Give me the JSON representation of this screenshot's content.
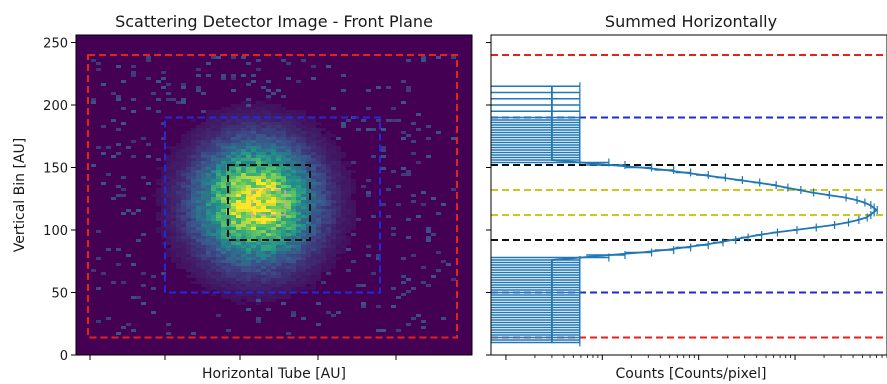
{
  "chart_data": [
    {
      "type": "heatmap",
      "title": "Scattering Detector Image - Front Plane",
      "xlabel": "Horizontal Tube [AU]",
      "ylabel": "Vertical Bin [AU]",
      "ylim": [
        0,
        256
      ],
      "yticks": [
        0,
        50,
        100,
        150,
        200,
        250
      ],
      "xticks_labeled": false,
      "colormap": "viridis",
      "distribution": {
        "center_y": 122,
        "sigma_y": 28,
        "support_y": [
          15,
          240
        ]
      },
      "regions": [
        {
          "color": "#e8201b",
          "y_range": [
            14,
            240
          ]
        },
        {
          "color": "#1f2ad8",
          "y_range": [
            50,
            190
          ]
        },
        {
          "color": "#111111",
          "y_range": [
            92,
            152
          ]
        },
        {
          "color": "#c9a9a0",
          "y_range": [
            112,
            132
          ]
        }
      ]
    },
    {
      "type": "line",
      "title": "Summed Horizontally",
      "xlabel": "Counts [Counts/pixel]",
      "x_scale": "log",
      "xticks_labeled": false,
      "ylim": [
        0,
        256
      ],
      "series": [
        {
          "color": "#1f77b4",
          "x": [
            3,
            3,
            3,
            3,
            3,
            3,
            3,
            3,
            3,
            3,
            3,
            3,
            3,
            3,
            3,
            3,
            3,
            3,
            3,
            3,
            3,
            3,
            3,
            3,
            3,
            3,
            3,
            3,
            3,
            3,
            3,
            3,
            3,
            3,
            6,
            12,
            25,
            45,
            70,
            110,
            160,
            220,
            300,
            420,
            620,
            1000,
            1600,
            2500,
            3500,
            4500,
            5500,
            6000,
            6500,
            7000,
            6500,
            6000,
            5200,
            4300,
            3300,
            2200,
            1500,
            1100,
            800,
            600,
            400,
            260,
            170,
            110,
            70,
            45,
            25,
            12,
            6,
            3,
            3,
            3,
            3,
            3,
            3,
            3,
            3,
            3,
            3,
            3,
            3,
            3,
            3,
            3,
            3,
            3,
            3,
            3,
            3,
            3,
            3,
            3
          ],
          "y": [
            10,
            12,
            14,
            16,
            18,
            20,
            22,
            24,
            26,
            28,
            30,
            32,
            34,
            36,
            38,
            40,
            42,
            44,
            46,
            48,
            50,
            52,
            54,
            56,
            58,
            60,
            62,
            64,
            66,
            68,
            70,
            72,
            74,
            76,
            78,
            80,
            82,
            84,
            86,
            88,
            90,
            92,
            94,
            96,
            98,
            100,
            102,
            104,
            106,
            108,
            110,
            112,
            114,
            116,
            118,
            120,
            122,
            124,
            126,
            128,
            130,
            132,
            134,
            136,
            138,
            140,
            142,
            144,
            146,
            148,
            150,
            152,
            154,
            156,
            158,
            160,
            162,
            164,
            166,
            168,
            170,
            172,
            174,
            176,
            178,
            180,
            182,
            184,
            186,
            188,
            190,
            195,
            200,
            205,
            210,
            215
          ]
        }
      ],
      "hlines": [
        {
          "color": "#e8201b",
          "y": 14
        },
        {
          "color": "#e8201b",
          "y": 240
        },
        {
          "color": "#1f2ad8",
          "y": 50
        },
        {
          "color": "#1f2ad8",
          "y": 190
        },
        {
          "color": "#111111",
          "y": 92
        },
        {
          "color": "#111111",
          "y": 152
        },
        {
          "color": "#c8c81e",
          "y": 112
        },
        {
          "color": "#c8c81e",
          "y": 132
        }
      ]
    }
  ]
}
